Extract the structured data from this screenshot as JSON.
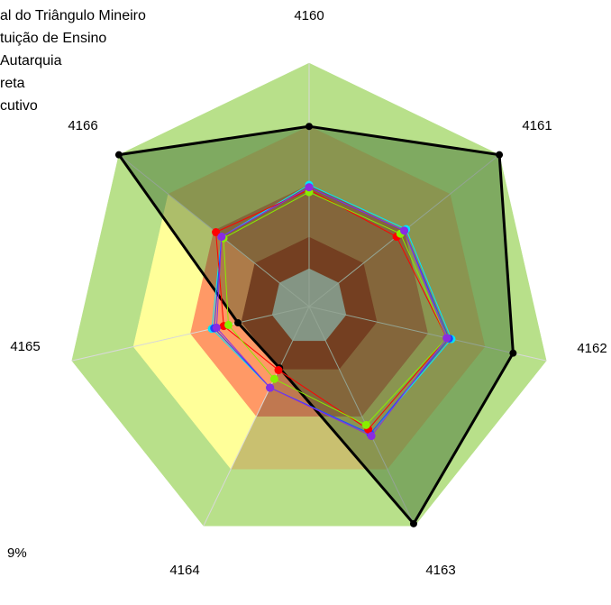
{
  "chart_data": {
    "type": "radar",
    "categories": [
      "4160",
      "4161",
      "4162",
      "4163",
      "4164",
      "4165",
      "4166"
    ],
    "rlim": [
      0,
      100
    ],
    "annotation": "9%",
    "series": [
      {
        "color": "#000000",
        "values": [
          74,
          100,
          86,
          99,
          28,
          30,
          100
        ]
      },
      {
        "name": "al do Triângulo Mineiro",
        "color": "#00e5ff",
        "values": [
          50,
          51,
          60,
          58,
          37,
          41,
          46
        ]
      },
      {
        "name": "tuição de Ensino",
        "color": "#2040ff",
        "values": [
          49,
          50,
          59,
          58,
          37,
          40,
          46
        ]
      },
      {
        "name": "Autarquia",
        "color": "#ff0000",
        "values": [
          48,
          46,
          58,
          56,
          29,
          36,
          49
        ]
      },
      {
        "name": "reta",
        "color": "#88ee00",
        "values": [
          47,
          48,
          58,
          54,
          33,
          34,
          45
        ]
      },
      {
        "name": "cutivo",
        "color": "#8a2be2",
        "values": [
          49,
          50,
          58,
          59,
          37,
          39,
          46
        ]
      }
    ]
  }
}
